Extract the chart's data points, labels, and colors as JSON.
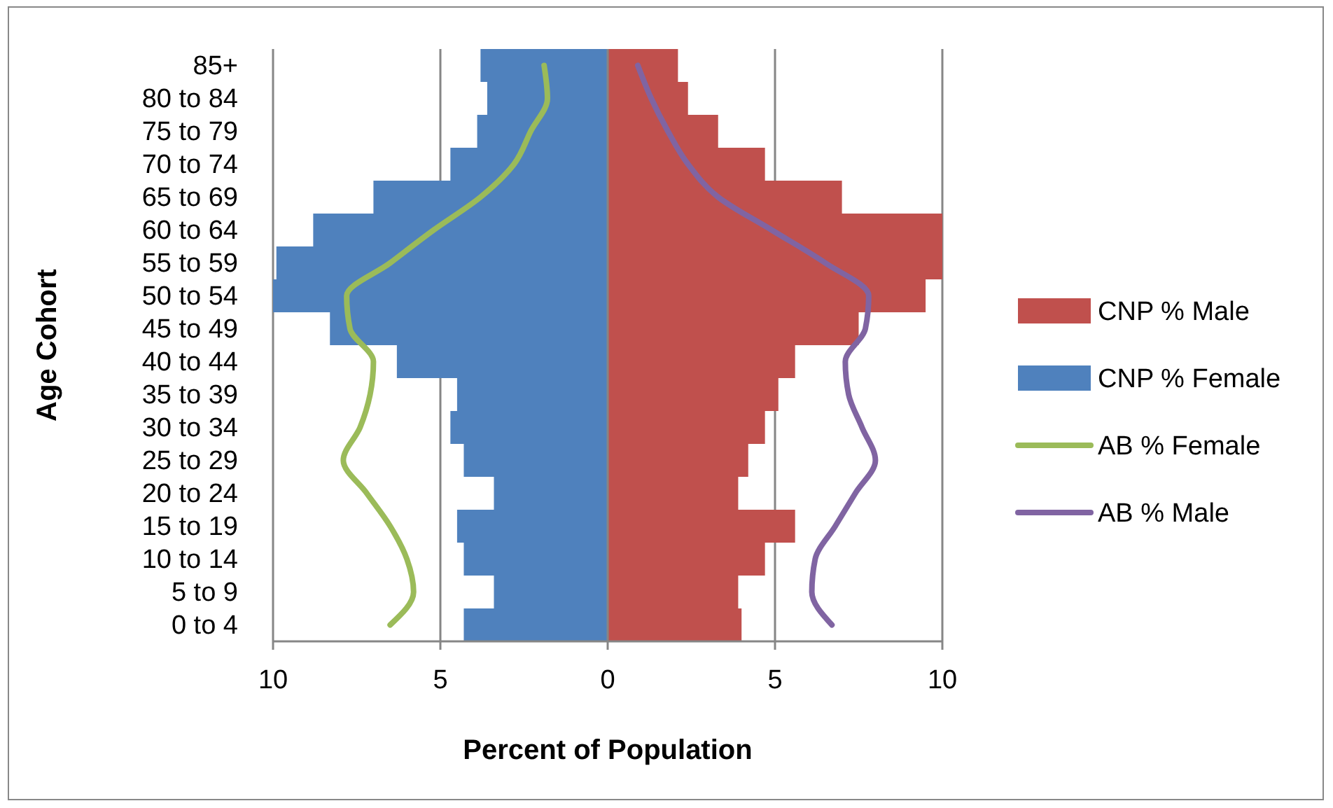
{
  "chart_data": {
    "type": "bar",
    "orientation": "horizontal",
    "xlabel": "Percent of Population",
    "ylabel": "Age Cohort",
    "categories": [
      "85+",
      "80 to 84",
      "75 to 79",
      "70 to 74",
      "65 to 69",
      "60 to 64",
      "55 to 59",
      "50 to 54",
      "45 to 49",
      "40 to 44",
      "35 to 39",
      "30 to 34",
      "25 to 29",
      "20 to 24",
      "15 to 19",
      "10 to 14",
      "5 to 9",
      "0 to 4"
    ],
    "series": [
      {
        "name": "CNP % Male",
        "color": "#c0504d",
        "values": [
          2.1,
          2.4,
          3.3,
          4.7,
          7.0,
          10,
          10,
          9.5,
          7.5,
          5.6,
          5.1,
          4.7,
          4.2,
          3.9,
          5.6,
          4.7,
          3.9,
          4.0
        ]
      },
      {
        "name": "CNP % Female",
        "color": "#4f81bd",
        "values": [
          -3.8,
          -3.6,
          -3.9,
          -4.7,
          -7.0,
          -8.8,
          -9.9,
          -10,
          -8.3,
          -6.3,
          -4.5,
          -4.7,
          -4.3,
          -3.4,
          -4.5,
          -4.3,
          -3.4,
          -4.3
        ]
      },
      {
        "name": "AB % Female",
        "type": "line",
        "color": "#9bbb59",
        "values": [
          -1.9,
          -1.8,
          -2.3,
          -2.8,
          -3.8,
          -5.2,
          -6.5,
          -7.8,
          -7.7,
          -7.0,
          -7.1,
          -7.4,
          -7.9,
          -7.2,
          -6.5,
          -6.0,
          -5.8,
          -6.5
        ]
      },
      {
        "name": "AB % Male",
        "type": "line",
        "color": "#8064a2",
        "values": [
          0.9,
          1.3,
          1.8,
          2.4,
          3.3,
          4.9,
          6.5,
          7.8,
          7.7,
          7.1,
          7.2,
          7.6,
          8.0,
          7.4,
          6.8,
          6.2,
          6.1,
          6.7
        ]
      }
    ],
    "xlim": [
      -10,
      10
    ],
    "xticks": [
      {
        "value": -10,
        "label": "10"
      },
      {
        "value": -5,
        "label": "5"
      },
      0,
      5,
      10
    ],
    "stacked": true,
    "grid": "x",
    "legend": "right",
    "line_style": "solid",
    "marker": "none"
  }
}
